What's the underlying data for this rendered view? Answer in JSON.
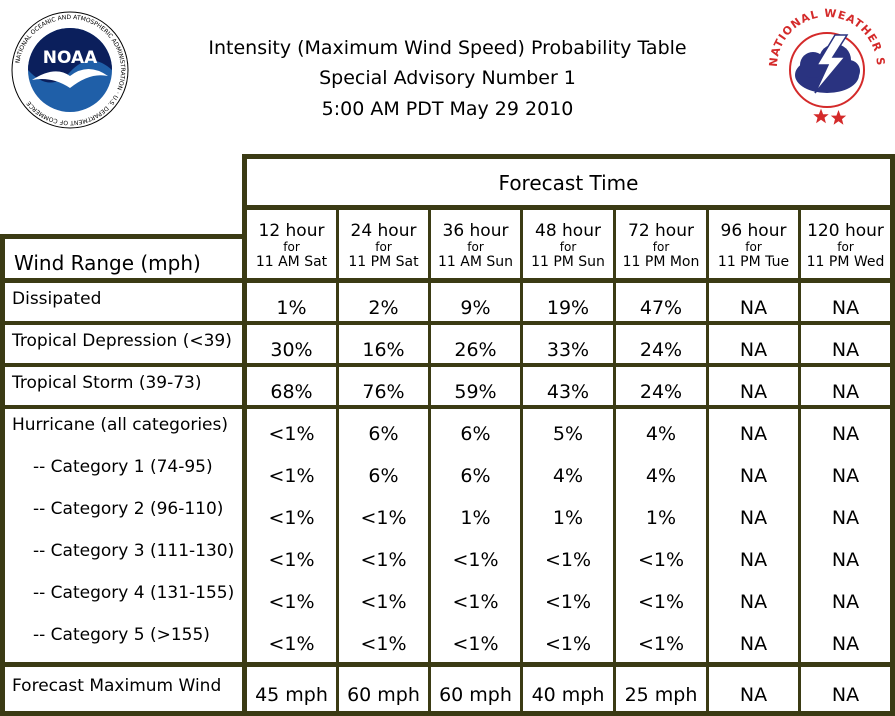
{
  "header": {
    "title_line1": "Intensity (Maximum Wind Speed) Probability Table",
    "title_line2": "Special Advisory Number 1",
    "title_line3": "5:00 AM PDT May 29 2010",
    "noaa_logo_text": "NOAA",
    "noaa_ring_text": "NATIONAL OCEANIC AND ATMOSPHERIC ADMINISTRATION · U.S. DEPARTMENT OF COMMERCE",
    "nws_ring_text": "NATIONAL WEATHER SERVICE"
  },
  "table": {
    "forecast_time_label": "Forecast Time",
    "wind_range_label": "Wind Range (mph)",
    "columns": [
      {
        "hour": "12 hour",
        "for": "for",
        "when": "11 AM Sat"
      },
      {
        "hour": "24 hour",
        "for": "for",
        "when": "11 PM Sat"
      },
      {
        "hour": "36 hour",
        "for": "for",
        "when": "11 AM Sun"
      },
      {
        "hour": "48 hour",
        "for": "for",
        "when": "11 PM Sun"
      },
      {
        "hour": "72 hour",
        "for": "for",
        "when": "11 PM Mon"
      },
      {
        "hour": "96 hour",
        "for": "for",
        "when": "11 PM Tue"
      },
      {
        "hour": "120 hour",
        "for": "for",
        "when": "11 PM Wed"
      }
    ],
    "rows": [
      {
        "label": "Dissipated",
        "values": [
          "1%",
          "2%",
          "9%",
          "19%",
          "47%",
          "NA",
          "NA"
        ]
      },
      {
        "label": "Tropical Depression (<39)",
        "values": [
          "30%",
          "16%",
          "26%",
          "33%",
          "24%",
          "NA",
          "NA"
        ]
      },
      {
        "label": "Tropical Storm (39-73)",
        "values": [
          "68%",
          "76%",
          "59%",
          "43%",
          "24%",
          "NA",
          "NA"
        ]
      },
      {
        "label": "Hurricane (all categories)",
        "values": [
          "<1%",
          "6%",
          "6%",
          "5%",
          "4%",
          "NA",
          "NA"
        ]
      },
      {
        "label": "-- Category 1 (74-95)",
        "values": [
          "<1%",
          "6%",
          "6%",
          "4%",
          "4%",
          "NA",
          "NA"
        ]
      },
      {
        "label": "-- Category 2 (96-110)",
        "values": [
          "<1%",
          "<1%",
          "1%",
          "1%",
          "1%",
          "NA",
          "NA"
        ]
      },
      {
        "label": "-- Category 3 (111-130)",
        "values": [
          "<1%",
          "<1%",
          "<1%",
          "<1%",
          "<1%",
          "NA",
          "NA"
        ]
      },
      {
        "label": "-- Category 4 (131-155)",
        "values": [
          "<1%",
          "<1%",
          "<1%",
          "<1%",
          "<1%",
          "NA",
          "NA"
        ]
      },
      {
        "label": "-- Category 5 (>155)",
        "values": [
          "<1%",
          "<1%",
          "<1%",
          "<1%",
          "<1%",
          "NA",
          "NA"
        ]
      },
      {
        "label": "Forecast Maximum Wind",
        "values": [
          "45 mph",
          "60 mph",
          "60 mph",
          "40 mph",
          "25 mph",
          "NA",
          "NA"
        ]
      }
    ]
  },
  "colors": {
    "border": "#3b3b14",
    "noaa_blue": "#1f5fa8",
    "noaa_navy": "#0b1f5c",
    "nws_red": "#d42a2a",
    "nws_cloud": "#2a3380"
  }
}
